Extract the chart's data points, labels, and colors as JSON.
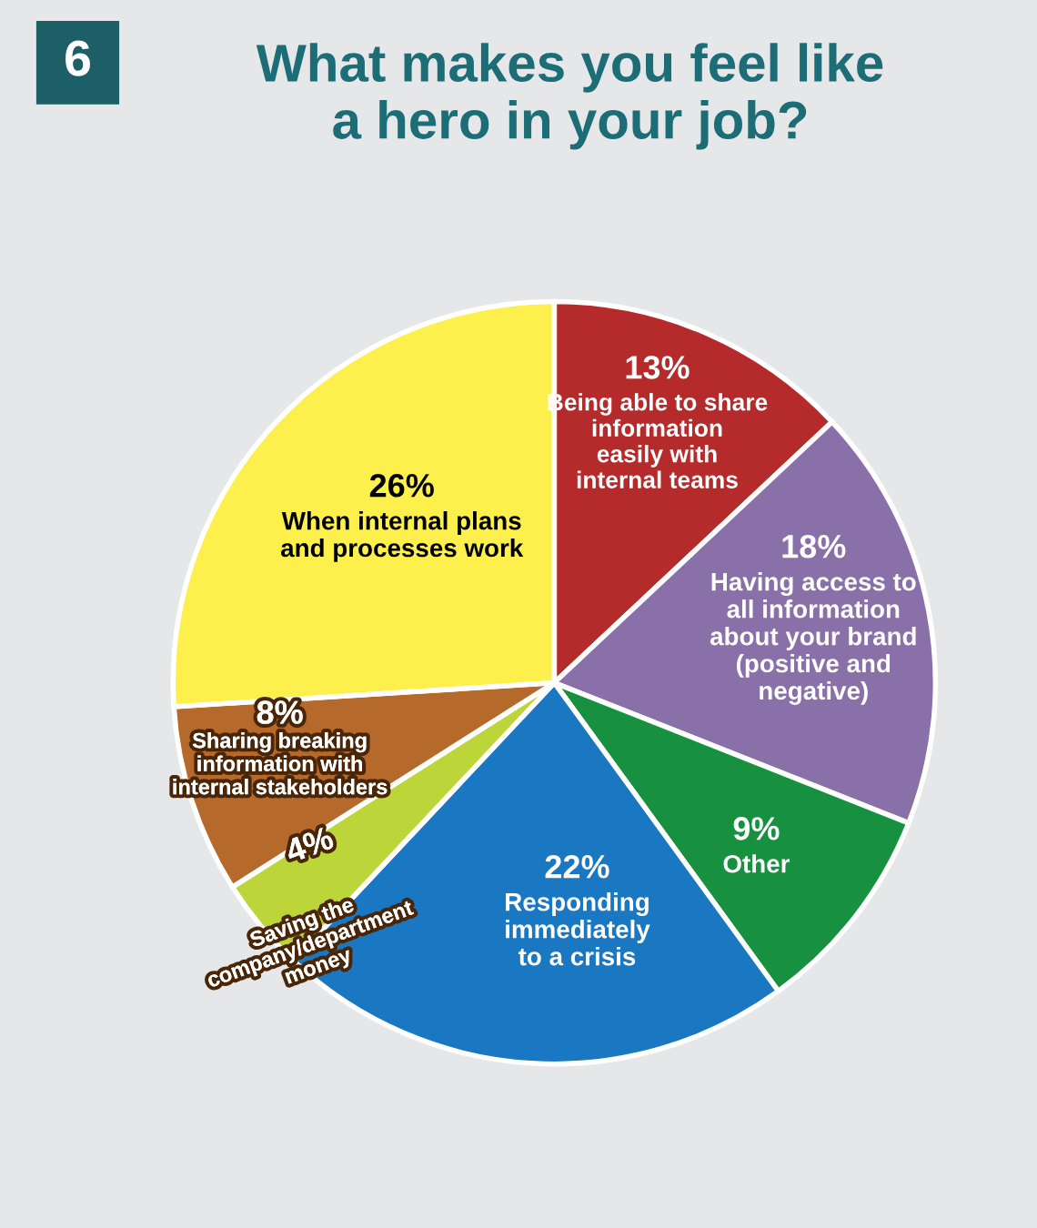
{
  "chart_data": {
    "type": "pie",
    "title": "What makes you feel like\na hero in your job?",
    "annotations": [
      "6"
    ],
    "categories": [
      "Being able to share\ninformation\neasily with\ninternal teams",
      "Having access to\nall information\nabout your brand\n(positive and\nnegative)",
      "Other",
      "Responding\nimmediately\nto a crisis",
      "Saving the\ncompany/department\nmoney",
      "Sharing breaking\ninformation with\ninternal stakeholders",
      "When internal plans\nand processes work"
    ],
    "values": [
      13,
      18,
      9,
      22,
      4,
      8,
      26
    ],
    "value_labels": [
      "13%",
      "18%",
      "9%",
      "22%",
      "4%",
      "8%",
      "26%"
    ],
    "colors": [
      "#b52b2b",
      "#8a70a8",
      "#17913f",
      "#1a78c2",
      "#bcd63a",
      "#b5692a",
      "#fdf04c"
    ],
    "legend": false
  }
}
